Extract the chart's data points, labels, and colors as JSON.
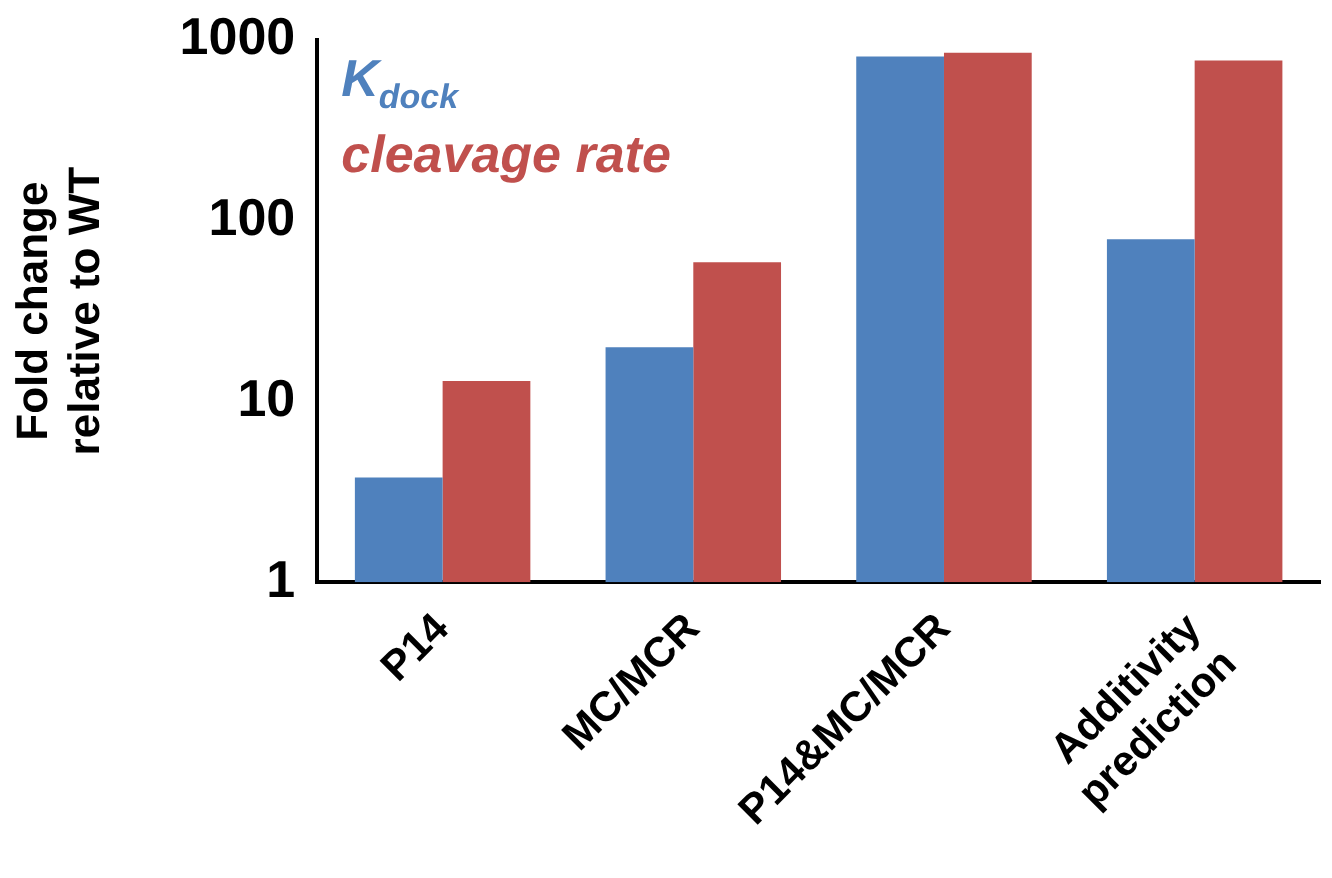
{
  "chart_data": {
    "type": "bar",
    "ylabel": "Fold change\nrelative to WT",
    "categories": [
      "P14",
      "MC/MCR",
      "P14&MC/MCR",
      "Additivity\nprediction"
    ],
    "series": [
      {
        "name": "K$_{dock}$",
        "color": "#4f81bd",
        "values": [
          3.8,
          20,
          810,
          79
        ]
      },
      {
        "name": "cleavage rate",
        "color": "#c0504d",
        "values": [
          13,
          59,
          850,
          770
        ]
      }
    ],
    "log": true,
    "ylim": [
      1,
      1000
    ],
    "yticks": [
      1,
      10,
      100,
      1000
    ],
    "grid": false,
    "legend": "top left"
  }
}
